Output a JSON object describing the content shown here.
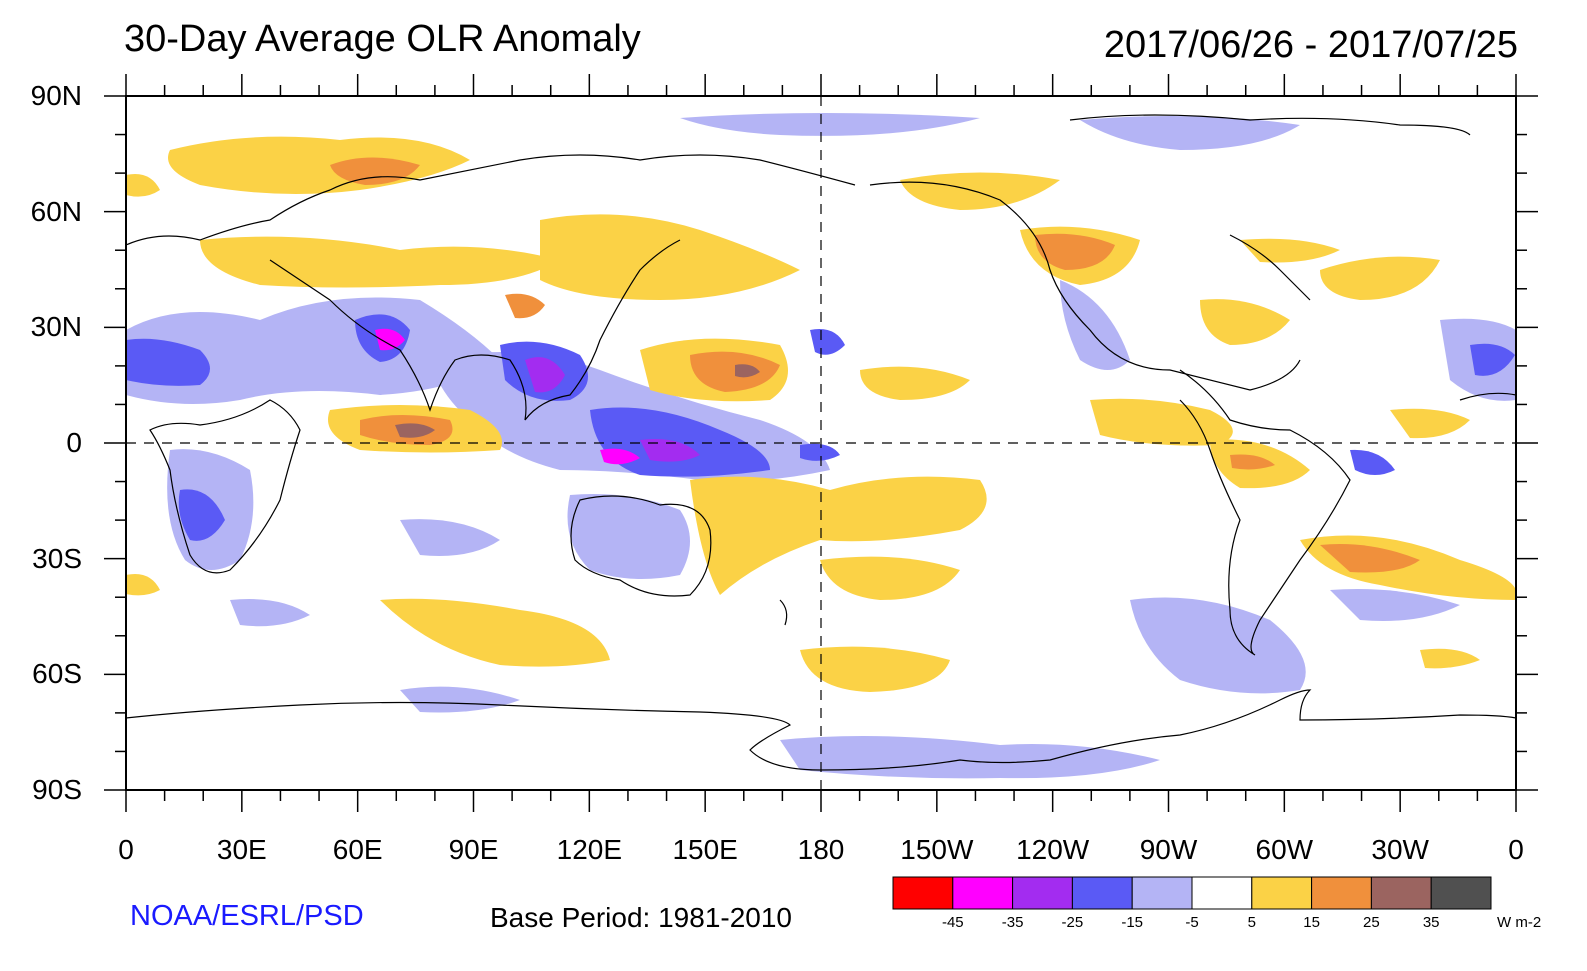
{
  "header": {
    "title": "30-Day Average OLR Anomaly",
    "date_range": "2017/06/26 - 2017/07/25"
  },
  "map": {
    "lat_labels": [
      "90N",
      "60N",
      "30N",
      "0",
      "30S",
      "60S",
      "90S"
    ],
    "lat_values": [
      90,
      60,
      30,
      0,
      -30,
      -60,
      -90
    ],
    "lon_labels": [
      "0",
      "30E",
      "60E",
      "90E",
      "120E",
      "150E",
      "180",
      "150W",
      "120W",
      "90W",
      "60W",
      "30W",
      "0"
    ],
    "lon_values": [
      0,
      30,
      60,
      90,
      120,
      150,
      180,
      210,
      240,
      270,
      300,
      330,
      360
    ]
  },
  "footer": {
    "source": "NOAA/ESRL/PSD",
    "base_period": "Base Period: 1981-2010"
  },
  "colorbar": {
    "colors": [
      "#ff0000",
      "#ff00ff",
      "#a32cf0",
      "#5a5af5",
      "#b4b4f5",
      "#ffffff",
      "#fbd246",
      "#f0903c",
      "#9b6460",
      "#505050"
    ],
    "labels": [
      "-45",
      "-35",
      "-25",
      "-15",
      "-5",
      "5",
      "15",
      "25",
      "35"
    ],
    "units": "W m-2"
  }
}
